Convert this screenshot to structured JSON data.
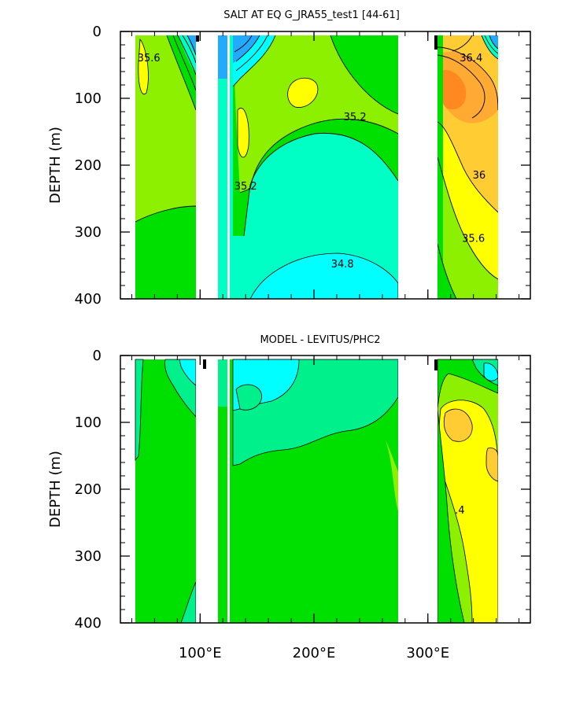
{
  "chart_data": [
    {
      "type": "heatmap",
      "title": "SALT AT EQ G_JRA55_test1 [44-61]",
      "ylabel": "DEPTH (m)",
      "xlabel": "",
      "x_tick_labels": [
        "100°E",
        "200°E",
        "300°E"
      ],
      "x_tick_values": [
        100,
        200,
        300
      ],
      "y_tick_labels": [
        "0",
        "100",
        "200",
        "300",
        "400"
      ],
      "y_tick_values": [
        0,
        100,
        200,
        300,
        400
      ],
      "xlim": [
        30,
        390
      ],
      "ylim": [
        400,
        0
      ],
      "contour_labels": [
        {
          "text": "35.6",
          "x": 55,
          "depth": 40
        },
        {
          "text": "36.4",
          "x": 338,
          "depth": 40
        },
        {
          "text": "35.2",
          "x": 236,
          "depth": 128
        },
        {
          "text": "35.2",
          "x": 140,
          "depth": 232
        },
        {
          "text": "36",
          "x": 345,
          "depth": 215
        },
        {
          "text": "35.6",
          "x": 340,
          "depth": 310
        },
        {
          "text": "34.8",
          "x": 225,
          "depth": 348
        }
      ],
      "colors": {
        "c34_6": "#00ffff",
        "c34_8": "#00ffc4",
        "c35_0": "#00f08c",
        "c35_2": "#00e000",
        "c35_4": "#8cf000",
        "c35_6": "#ffff00",
        "c35_8": "#ffcc33",
        "c36_0": "#ffaa33",
        "c36_4": "#ff8820",
        "c_low": "#22aaff"
      }
    },
    {
      "type": "heatmap",
      "title": "MODEL - LEVITUS/PHC2",
      "ylabel": "DEPTH (m)",
      "xlabel": "",
      "x_tick_labels": [
        "100°E",
        "200°E",
        "300°E"
      ],
      "x_tick_values": [
        100,
        200,
        300
      ],
      "y_tick_labels": [
        "0",
        "100",
        "200",
        "300",
        "400"
      ],
      "y_tick_values": [
        0,
        100,
        200,
        300,
        400
      ],
      "xlim": [
        30,
        390
      ],
      "ylim": [
        400,
        0
      ],
      "contour_labels": [
        {
          "text": ".4",
          "x": 328,
          "depth": 232
        }
      ],
      "colors": {
        "neg_high": "#00ffff",
        "neg_mid": "#00f0a0",
        "zero": "#00e000",
        "pos_low": "#8cf000",
        "pos_mid": "#ffff00",
        "pos_high": "#ffcc33"
      }
    }
  ]
}
